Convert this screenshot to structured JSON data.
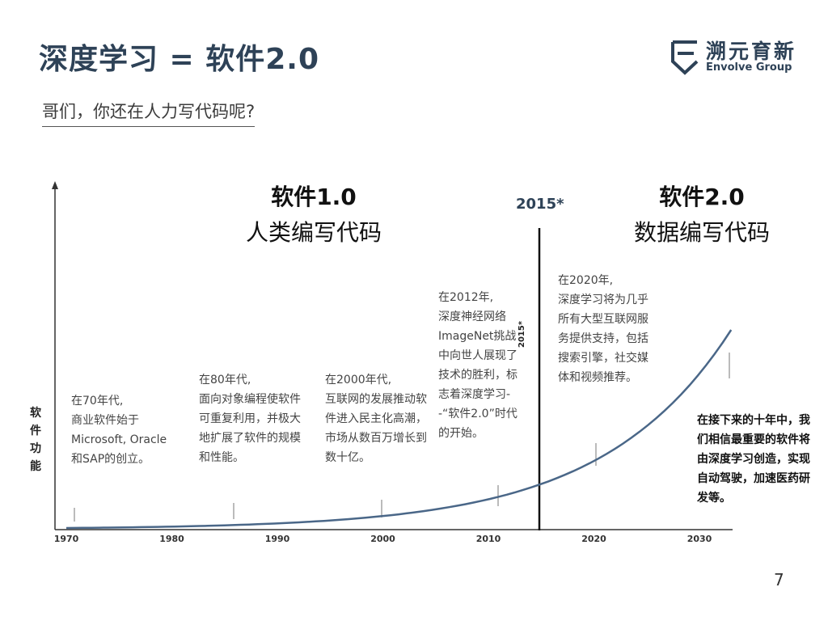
{
  "header": {
    "title": "深度学习 = 软件2.0",
    "subtitle": "哥们，你还在人力写代码呢?"
  },
  "brand": {
    "name_cn": "溯元育新",
    "name_en": "Envolve Group",
    "color": "#2e4257"
  },
  "eras": {
    "software1": {
      "title": "软件1.0",
      "subtitle": "人类编写代码"
    },
    "software2": {
      "title": "软件2.0",
      "subtitle": "数据编写代码"
    }
  },
  "milestone": {
    "label_top": "2015*",
    "label_vertical": "2015*"
  },
  "axis": {
    "ylabel": "软件功能"
  },
  "chart_data": {
    "type": "line",
    "x_ticks": [
      "1970",
      "1980",
      "1990",
      "2000",
      "2010",
      "2020",
      "2030"
    ],
    "xlim": [
      1970,
      2033
    ],
    "line_color": "#4a6788",
    "events": [
      {
        "year": "在70年代,",
        "text": "商业软件始于Microsoft, Oracle和SAP的创立。"
      },
      {
        "year": "在80年代,",
        "text": "面向对象编程使软件可重复利用，并极大地扩展了软件的规模和性能。"
      },
      {
        "year": "在2000年代,",
        "text": "互联网的发展推动软件进入民主化高潮，市场从数百万增长到数十亿。"
      },
      {
        "year": "在2012年,",
        "text": "深度神经网络ImageNet挑战中向世人展现了技术的胜利，标志着深度学习--“软件2.0”时代的开始。"
      },
      {
        "year": "在2020年,",
        "text": "深度学习将为几乎所有大型互联网服务提供支持，包括搜索引擎，社交媒体和视频推荐。"
      }
    ]
  },
  "final_note": "在接下来的十年中，我们相信最重要的软件将由深度学习创造，实现自动驾驶，加速医药研发等。",
  "page_number": "7"
}
